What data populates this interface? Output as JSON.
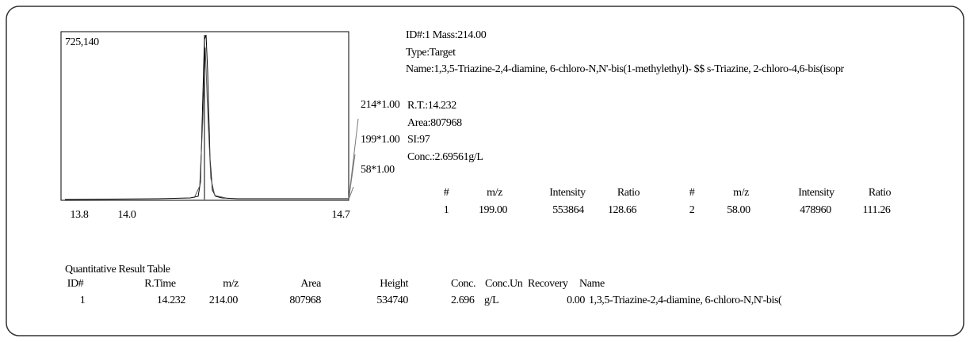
{
  "chromatogram": {
    "max_label": "725,140",
    "x_labels": [
      "13.8",
      "14.0",
      "14.7"
    ],
    "ion_labels": [
      "214*1.00",
      "199*1.00",
      "58*1.00"
    ]
  },
  "compound": {
    "id_mass": "ID#:1  Mass:214.00",
    "type": "Type:Target",
    "name": "Name:1,3,5-Triazine-2,4-diamine, 6-chloro-N,N'-bis(1-methylethyl)- $$ s-Triazine, 2-chloro-4,6-bis(isopr",
    "rt": "R.T.:14.232",
    "area": "Area:807968",
    "si": "SI:97",
    "conc": "Conc.:2.69561g/L"
  },
  "ion_table": {
    "headers": [
      "#",
      "m/z",
      "Intensity",
      "Ratio",
      "#",
      "m/z",
      "Intensity",
      "Ratio"
    ],
    "rows": [
      [
        "1",
        "199.00",
        "553864",
        "128.66",
        "2",
        "58.00",
        "478960",
        "111.26"
      ]
    ]
  },
  "result_table": {
    "title": "Quantitative Result Table",
    "headers": [
      "ID#",
      "R.Time",
      "m/z",
      "Area",
      "Height",
      "Conc.",
      "Conc.Un",
      "Recovery",
      "Name"
    ],
    "rows": [
      [
        "1",
        "14.232",
        "214.00",
        "807968",
        "534740",
        "2.696",
        "g/L",
        "0.00",
        "1,3,5-Triazine-2,4-diamine, 6-chloro-N,N'-bis("
      ]
    ]
  }
}
